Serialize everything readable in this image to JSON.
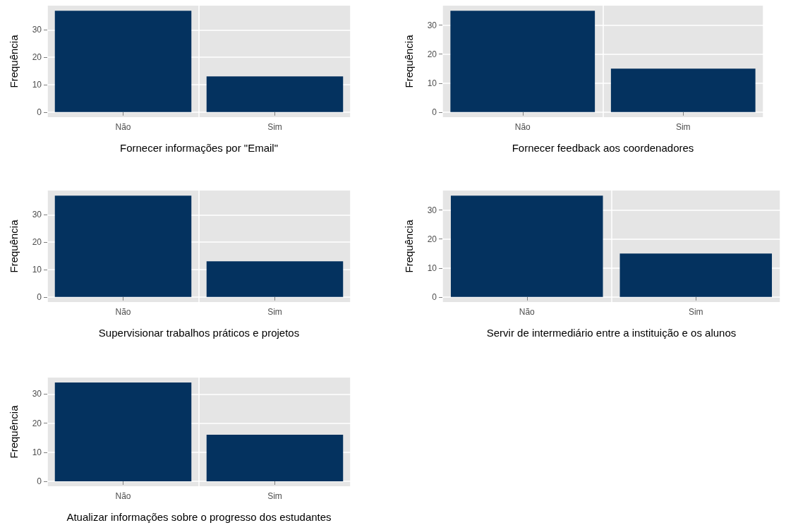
{
  "chart_data": [
    {
      "type": "bar",
      "xlabel": "Fornecer informações por \"Email\"",
      "ylabel": "Frequência",
      "categories": [
        "Não",
        "Sim"
      ],
      "values": [
        37,
        13
      ],
      "color": "#04325f",
      "ylim": [
        -1.85,
        38.85
      ],
      "yticks": [
        0,
        10,
        20,
        30
      ],
      "grid": true
    },
    {
      "type": "bar",
      "xlabel": "Fornecer feedback aos coordenadores",
      "ylabel": "Frequência",
      "categories": [
        "Não",
        "Sim"
      ],
      "values": [
        35,
        15
      ],
      "color": "#04325f",
      "ylim": [
        -1.75,
        36.75
      ],
      "yticks": [
        0,
        10,
        20,
        30
      ],
      "grid": true
    },
    {
      "type": "bar",
      "xlabel": "Supervisionar trabalhos práticos e projetos",
      "ylabel": "Frequência",
      "categories": [
        "Não",
        "Sim"
      ],
      "values": [
        37,
        13
      ],
      "color": "#04325f",
      "ylim": [
        -1.85,
        38.85
      ],
      "yticks": [
        0,
        10,
        20,
        30
      ],
      "grid": true
    },
    {
      "type": "bar",
      "xlabel": "Servir de intermediário entre a instituição e os alunos",
      "ylabel": "Frequência",
      "categories": [
        "Não",
        "Sim"
      ],
      "values": [
        35,
        15
      ],
      "color": "#04325f",
      "ylim": [
        -1.75,
        36.75
      ],
      "yticks": [
        0,
        10,
        20,
        30
      ],
      "grid": true
    },
    {
      "type": "bar",
      "xlabel": "Atualizar informações sobre o progresso dos estudantes",
      "ylabel": "Frequência",
      "categories": [
        "Não",
        "Sim"
      ],
      "values": [
        34,
        16
      ],
      "color": "#04325f",
      "ylim": [
        -1.7,
        35.7
      ],
      "yticks": [
        0,
        10,
        20,
        30
      ],
      "grid": true
    }
  ]
}
